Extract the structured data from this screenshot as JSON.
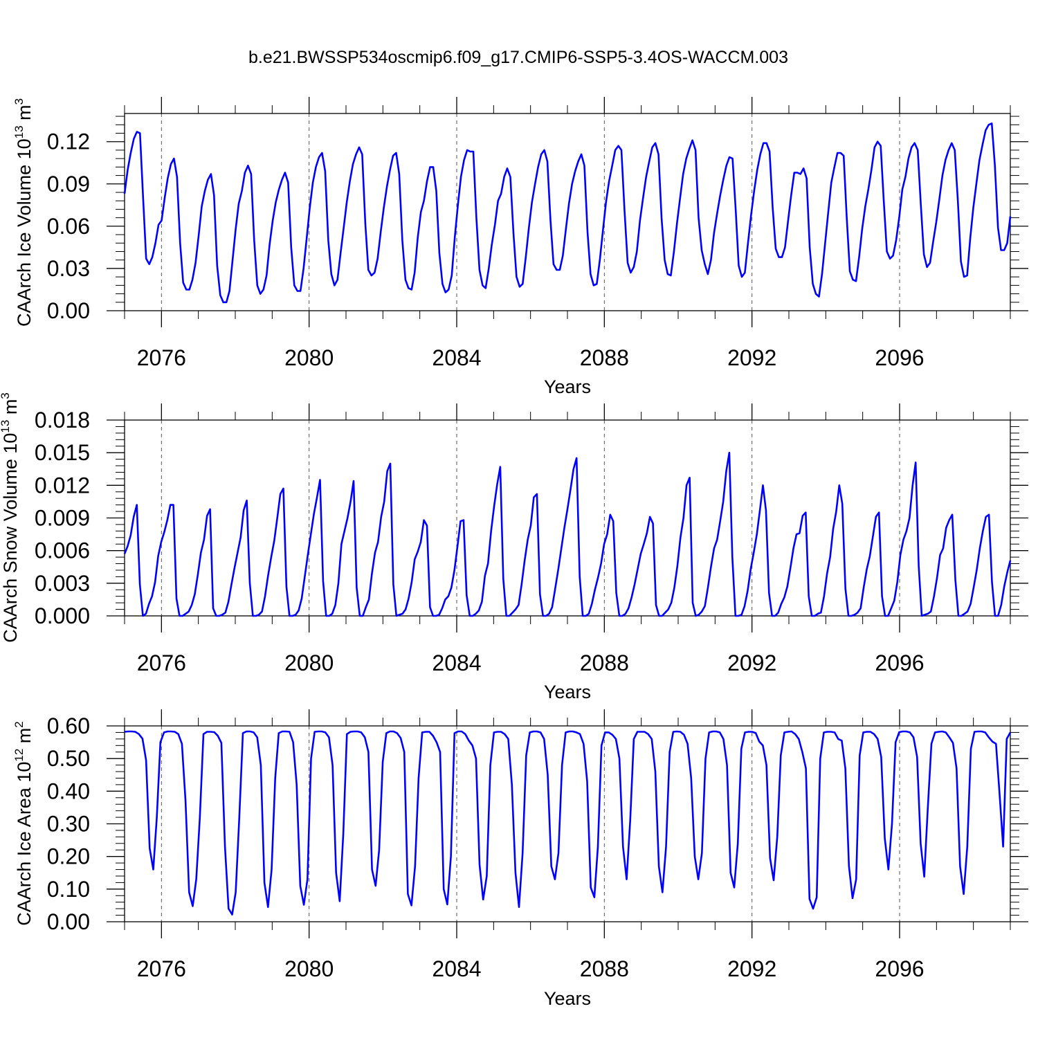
{
  "figure_title": "b.e21.BWSSP534oscmip6.f09_g17.CMIP6-SSP5-3.4OS-WACCM.003",
  "colors": {
    "series": "#0000ff",
    "frame": "#000000",
    "grid": "#555555"
  },
  "chart_data": [
    {
      "type": "line",
      "title": "",
      "ylabel": "CAArch Ice Volume 10",
      "ylabel_exp": "13",
      "ylabel_unit": " m",
      "ylabel_unit_exp": "3",
      "xlabel": "Years",
      "xlim": [
        2075,
        2099
      ],
      "ylim": [
        0,
        0.14
      ],
      "xticks": [
        2076,
        2080,
        2084,
        2088,
        2092,
        2096
      ],
      "yticks": [
        "0.00",
        "0.03",
        "0.06",
        "0.09",
        "0.12"
      ],
      "grid": "vertical dashed at major x ticks",
      "series": [
        {
          "values": [
            0.083,
            0.1,
            0.112,
            0.122,
            0.127,
            0.126,
            0.08,
            0.037,
            0.033,
            0.038,
            0.048,
            0.061,
            0.064,
            0.08,
            0.094,
            0.104,
            0.108,
            0.095,
            0.048,
            0.02,
            0.015,
            0.015,
            0.022,
            0.034,
            0.053,
            0.074,
            0.085,
            0.093,
            0.097,
            0.082,
            0.032,
            0.011,
            0.006,
            0.006,
            0.014,
            0.036,
            0.058,
            0.076,
            0.085,
            0.098,
            0.103,
            0.097,
            0.05,
            0.018,
            0.012,
            0.015,
            0.025,
            0.047,
            0.064,
            0.077,
            0.086,
            0.093,
            0.098,
            0.091,
            0.045,
            0.018,
            0.014,
            0.014,
            0.03,
            0.051,
            0.073,
            0.091,
            0.102,
            0.109,
            0.112,
            0.099,
            0.05,
            0.026,
            0.018,
            0.022,
            0.041,
            0.059,
            0.077,
            0.092,
            0.104,
            0.111,
            0.116,
            0.111,
            0.062,
            0.029,
            0.025,
            0.027,
            0.037,
            0.056,
            0.073,
            0.088,
            0.1,
            0.11,
            0.112,
            0.097,
            0.05,
            0.022,
            0.016,
            0.015,
            0.027,
            0.052,
            0.07,
            0.078,
            0.092,
            0.102,
            0.102,
            0.085,
            0.041,
            0.019,
            0.013,
            0.015,
            0.025,
            0.052,
            0.075,
            0.095,
            0.107,
            0.114,
            0.113,
            0.113,
            0.066,
            0.029,
            0.018,
            0.016,
            0.03,
            0.047,
            0.061,
            0.078,
            0.083,
            0.095,
            0.101,
            0.095,
            0.055,
            0.024,
            0.017,
            0.019,
            0.038,
            0.059,
            0.077,
            0.09,
            0.102,
            0.111,
            0.114,
            0.106,
            0.064,
            0.033,
            0.029,
            0.029,
            0.039,
            0.058,
            0.076,
            0.09,
            0.099,
            0.106,
            0.111,
            0.103,
            0.056,
            0.026,
            0.018,
            0.019,
            0.036,
            0.057,
            0.077,
            0.092,
            0.103,
            0.114,
            0.117,
            0.114,
            0.071,
            0.034,
            0.027,
            0.031,
            0.042,
            0.064,
            0.08,
            0.095,
            0.106,
            0.116,
            0.119,
            0.111,
            0.066,
            0.036,
            0.026,
            0.025,
            0.042,
            0.062,
            0.08,
            0.097,
            0.108,
            0.115,
            0.121,
            0.114,
            0.066,
            0.043,
            0.033,
            0.026,
            0.036,
            0.055,
            0.069,
            0.082,
            0.093,
            0.103,
            0.109,
            0.108,
            0.072,
            0.032,
            0.024,
            0.027,
            0.048,
            0.068,
            0.085,
            0.1,
            0.111,
            0.119,
            0.119,
            0.113,
            0.073,
            0.044,
            0.038,
            0.038,
            0.045,
            0.064,
            0.082,
            0.098,
            0.098,
            0.097,
            0.101,
            0.094,
            0.045,
            0.019,
            0.012,
            0.01,
            0.026,
            0.048,
            0.07,
            0.091,
            0.102,
            0.112,
            0.112,
            0.11,
            0.066,
            0.028,
            0.022,
            0.021,
            0.038,
            0.058,
            0.074,
            0.086,
            0.1,
            0.116,
            0.12,
            0.117,
            0.078,
            0.042,
            0.037,
            0.039,
            0.05,
            0.066,
            0.086,
            0.095,
            0.108,
            0.116,
            0.119,
            0.114,
            0.075,
            0.04,
            0.031,
            0.034,
            0.049,
            0.063,
            0.079,
            0.096,
            0.107,
            0.114,
            0.119,
            0.114,
            0.078,
            0.035,
            0.024,
            0.025,
            0.051,
            0.073,
            0.09,
            0.107,
            0.118,
            0.128,
            0.132,
            0.133,
            0.103,
            0.059,
            0.043,
            0.043,
            0.048,
            0.067
          ]
        }
      ]
    },
    {
      "type": "line",
      "title": "",
      "ylabel": "CAArch Snow Volume 10",
      "ylabel_exp": "13",
      "ylabel_unit": " m",
      "ylabel_unit_exp": "3",
      "xlabel": "Years",
      "xlim": [
        2075,
        2099
      ],
      "ylim": [
        0,
        0.018
      ],
      "xticks": [
        2076,
        2080,
        2084,
        2088,
        2092,
        2096
      ],
      "yticks": [
        "0.000",
        "0.003",
        "0.006",
        "0.009",
        "0.012",
        "0.015",
        "0.018"
      ],
      "grid": "vertical dashed at major x ticks",
      "series": [
        {
          "values": [
            0.0057,
            0.0064,
            0.0074,
            0.0091,
            0.0102,
            0.0029,
            0.0,
            0.0002,
            0.0011,
            0.0018,
            0.0031,
            0.0055,
            0.0068,
            0.0077,
            0.0088,
            0.0102,
            0.0102,
            0.0016,
            0.0,
            0.0,
            0.0002,
            0.0004,
            0.001,
            0.002,
            0.0038,
            0.0058,
            0.007,
            0.0092,
            0.0098,
            0.0007,
            0.0,
            0.0,
            0.0001,
            0.0003,
            0.0013,
            0.0029,
            0.0044,
            0.0058,
            0.0072,
            0.0097,
            0.0106,
            0.003,
            0.0,
            0.0,
            0.0001,
            0.0004,
            0.0018,
            0.0037,
            0.0054,
            0.0069,
            0.009,
            0.0112,
            0.0117,
            0.0027,
            0.0,
            0.0,
            0.0001,
            0.0005,
            0.0016,
            0.0036,
            0.0056,
            0.0075,
            0.0094,
            0.0109,
            0.0125,
            0.0032,
            0.0,
            0.0,
            0.0002,
            0.001,
            0.003,
            0.0066,
            0.0078,
            0.009,
            0.0105,
            0.0124,
            0.0026,
            0.0,
            0.0,
            0.0008,
            0.0015,
            0.0039,
            0.0058,
            0.0068,
            0.0091,
            0.0105,
            0.0133,
            0.014,
            0.0029,
            0.0,
            0.0001,
            0.0002,
            0.0006,
            0.0016,
            0.0031,
            0.0052,
            0.0059,
            0.0068,
            0.0088,
            0.0083,
            0.0008,
            0.0,
            0.0,
            0.0001,
            0.0007,
            0.0015,
            0.0018,
            0.0026,
            0.0042,
            0.0064,
            0.0087,
            0.0088,
            0.0019,
            0.0,
            0.0,
            0.0002,
            0.0005,
            0.0013,
            0.0037,
            0.0048,
            0.0078,
            0.0101,
            0.0121,
            0.0137,
            0.0034,
            0.0,
            0.0,
            0.0003,
            0.0006,
            0.001,
            0.0029,
            0.0051,
            0.007,
            0.0083,
            0.0109,
            0.0112,
            0.002,
            0.0,
            0.0,
            0.0002,
            0.0008,
            0.0025,
            0.0043,
            0.0062,
            0.0081,
            0.0098,
            0.0116,
            0.0135,
            0.0145,
            0.0036,
            0.0,
            0.0,
            0.0002,
            0.0011,
            0.0024,
            0.0035,
            0.0048,
            0.0066,
            0.0075,
            0.0093,
            0.0087,
            0.0021,
            0.0,
            0.0,
            0.0002,
            0.0007,
            0.0017,
            0.0029,
            0.0043,
            0.0057,
            0.0066,
            0.0076,
            0.0091,
            0.0085,
            0.001,
            0.0,
            0.0,
            0.0003,
            0.0006,
            0.0012,
            0.0026,
            0.0046,
            0.0072,
            0.009,
            0.012,
            0.0127,
            0.0012,
            0.0,
            0.0001,
            0.0004,
            0.0009,
            0.0026,
            0.0045,
            0.0062,
            0.007,
            0.0087,
            0.0105,
            0.0133,
            0.015,
            0.0054,
            0.0,
            0.0,
            0.0001,
            0.0009,
            0.0023,
            0.0043,
            0.0058,
            0.0075,
            0.0097,
            0.012,
            0.0097,
            0.0021,
            0.0,
            0.0,
            0.0003,
            0.0011,
            0.0017,
            0.0027,
            0.0044,
            0.0062,
            0.0075,
            0.0076,
            0.0092,
            0.0095,
            0.0018,
            0.0,
            0.0,
            0.0002,
            0.0003,
            0.0018,
            0.0039,
            0.0054,
            0.008,
            0.0096,
            0.012,
            0.0103,
            0.0025,
            0.0,
            0.0,
            0.0001,
            0.0003,
            0.0007,
            0.0026,
            0.0043,
            0.0055,
            0.0073,
            0.0091,
            0.0095,
            0.0018,
            0.0,
            0.0,
            0.0007,
            0.0014,
            0.0031,
            0.0056,
            0.007,
            0.0078,
            0.009,
            0.012,
            0.0141,
            0.0046,
            0.0,
            0.0001,
            0.0002,
            0.0004,
            0.0018,
            0.0035,
            0.0056,
            0.0062,
            0.0081,
            0.0088,
            0.0093,
            0.0033,
            0.0,
            0.0,
            0.0002,
            0.0004,
            0.0011,
            0.0026,
            0.0042,
            0.0062,
            0.0078,
            0.0091,
            0.0093,
            0.0031,
            0.0,
            0.0,
            0.001,
            0.0027,
            0.004,
            0.0051
          ]
        }
      ]
    },
    {
      "type": "line",
      "title": "",
      "ylabel": "CAArch Ice Area 10",
      "ylabel_exp": "12",
      "ylabel_unit": " m",
      "ylabel_unit_exp": "2",
      "xlabel": "Years",
      "xlim": [
        2075,
        2099
      ],
      "ylim": [
        0,
        0.6
      ],
      "xticks": [
        2076,
        2080,
        2084,
        2088,
        2092,
        2096
      ],
      "yticks": [
        "0.00",
        "0.10",
        "0.20",
        "0.30",
        "0.40",
        "0.50",
        "0.60"
      ],
      "grid": "vertical dashed at major x ticks",
      "series": [
        {
          "values": [
            0.582,
            0.583,
            0.583,
            0.582,
            0.575,
            0.561,
            0.495,
            0.225,
            0.16,
            0.32,
            0.55,
            0.58,
            0.583,
            0.583,
            0.582,
            0.575,
            0.545,
            0.37,
            0.09,
            0.048,
            0.13,
            0.32,
            0.575,
            0.582,
            0.582,
            0.581,
            0.57,
            0.548,
            0.23,
            0.04,
            0.022,
            0.09,
            0.32,
            0.578,
            0.583,
            0.583,
            0.58,
            0.565,
            0.48,
            0.12,
            0.045,
            0.16,
            0.44,
            0.578,
            0.583,
            0.583,
            0.582,
            0.55,
            0.42,
            0.11,
            0.052,
            0.13,
            0.5,
            0.582,
            0.583,
            0.583,
            0.58,
            0.565,
            0.48,
            0.15,
            0.063,
            0.27,
            0.575,
            0.582,
            0.583,
            0.583,
            0.58,
            0.565,
            0.52,
            0.16,
            0.11,
            0.22,
            0.49,
            0.578,
            0.583,
            0.583,
            0.578,
            0.563,
            0.52,
            0.085,
            0.05,
            0.17,
            0.44,
            0.58,
            0.582,
            0.582,
            0.57,
            0.55,
            0.52,
            0.1,
            0.053,
            0.2,
            0.578,
            0.583,
            0.583,
            0.575,
            0.555,
            0.54,
            0.5,
            0.175,
            0.068,
            0.14,
            0.48,
            0.58,
            0.582,
            0.582,
            0.575,
            0.56,
            0.42,
            0.15,
            0.045,
            0.21,
            0.51,
            0.58,
            0.583,
            0.583,
            0.58,
            0.56,
            0.45,
            0.17,
            0.13,
            0.21,
            0.48,
            0.58,
            0.583,
            0.583,
            0.58,
            0.575,
            0.545,
            0.43,
            0.105,
            0.075,
            0.23,
            0.54,
            0.58,
            0.58,
            0.573,
            0.56,
            0.5,
            0.23,
            0.13,
            0.31,
            0.56,
            0.582,
            0.582,
            0.582,
            0.575,
            0.56,
            0.46,
            0.17,
            0.09,
            0.23,
            0.52,
            0.582,
            0.583,
            0.582,
            0.573,
            0.545,
            0.44,
            0.2,
            0.13,
            0.21,
            0.5,
            0.58,
            0.583,
            0.583,
            0.58,
            0.56,
            0.48,
            0.15,
            0.105,
            0.24,
            0.53,
            0.58,
            0.582,
            0.582,
            0.578,
            0.552,
            0.54,
            0.48,
            0.195,
            0.127,
            0.26,
            0.51,
            0.58,
            0.582,
            0.583,
            0.575,
            0.56,
            0.52,
            0.47,
            0.07,
            0.04,
            0.075,
            0.5,
            0.58,
            0.582,
            0.582,
            0.58,
            0.56,
            0.555,
            0.47,
            0.17,
            0.072,
            0.13,
            0.51,
            0.58,
            0.582,
            0.582,
            0.575,
            0.56,
            0.505,
            0.255,
            0.16,
            0.3,
            0.55,
            0.581,
            0.583,
            0.583,
            0.58,
            0.565,
            0.505,
            0.24,
            0.138,
            0.35,
            0.545,
            0.58,
            0.582,
            0.583,
            0.58,
            0.565,
            0.548,
            0.47,
            0.17,
            0.085,
            0.23,
            0.53,
            0.582,
            0.583,
            0.583,
            0.58,
            0.565,
            0.552,
            0.545,
            0.39,
            0.23,
            0.56,
            0.58
          ]
        }
      ]
    }
  ]
}
